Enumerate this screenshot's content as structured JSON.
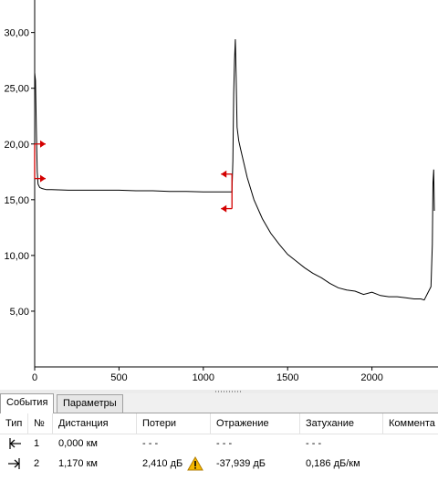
{
  "chart_data": {
    "type": "line",
    "title": "",
    "xlabel": "",
    "ylabel": "",
    "xlim": [
      0,
      2370
    ],
    "ylim": [
      0,
      33
    ],
    "x_ticks": [
      0,
      500,
      1000,
      1500,
      2000
    ],
    "y_ticks": [
      {
        "value": 5,
        "label": "5,00"
      },
      {
        "value": 10,
        "label": "10,00"
      },
      {
        "value": 15,
        "label": "15,00"
      },
      {
        "value": 20,
        "label": "20,00"
      },
      {
        "value": 25,
        "label": "25,00"
      },
      {
        "value": 30,
        "label": "30,00"
      }
    ],
    "grid": false,
    "series": [
      {
        "x": [
          0,
          5,
          10,
          15,
          20,
          30,
          45,
          70,
          100,
          200,
          300,
          400,
          500,
          600,
          700,
          800,
          900,
          1000,
          1100,
          1170,
          1175,
          1180,
          1185,
          1190,
          1195,
          1200,
          1210,
          1220,
          1240,
          1260,
          1300,
          1350,
          1400,
          1450,
          1500,
          1550,
          1600,
          1650,
          1700,
          1750,
          1800,
          1850,
          1900,
          1950,
          2000,
          2050,
          2100,
          2150,
          2200,
          2250,
          2290,
          2310,
          2330,
          2350,
          2358,
          2362,
          2366,
          2370
        ],
        "y": [
          26.4,
          25.7,
          21.5,
          17.5,
          16.4,
          16.1,
          16.0,
          15.9,
          15.9,
          15.85,
          15.85,
          15.85,
          15.85,
          15.8,
          15.8,
          15.75,
          15.75,
          15.7,
          15.7,
          15.7,
          18.5,
          24.5,
          27.5,
          29.4,
          26.0,
          21.5,
          20.3,
          19.6,
          18.3,
          17.0,
          15.0,
          13.3,
          12.0,
          11.0,
          10.1,
          9.5,
          8.9,
          8.4,
          8.0,
          7.5,
          7.1,
          6.9,
          6.8,
          6.5,
          6.7,
          6.4,
          6.3,
          6.3,
          6.2,
          6.1,
          6.1,
          6.0,
          6.6,
          7.2,
          11.0,
          16.5,
          17.7,
          14.0
        ]
      }
    ],
    "markers": [
      {
        "x": 0,
        "y_top": 20.0,
        "y_bottom": 16.9,
        "direction": "right"
      },
      {
        "x": 1170,
        "y_top": 17.3,
        "y_bottom": 14.2,
        "direction": "left"
      }
    ]
  },
  "tabs": [
    {
      "label": "События",
      "active": true
    },
    {
      "label": "Параметры",
      "active": false
    }
  ],
  "events_table": {
    "columns": [
      "Тип",
      "№",
      "Дистанция",
      "Потери",
      "Отражение",
      "Затухание",
      "Коммента"
    ],
    "rows": [
      {
        "type_icon": "launch-start-icon",
        "num": "1",
        "distance": "0,000 км",
        "loss": "- - -",
        "warning": false,
        "reflection": "- - -",
        "attenuation": "- - -",
        "comment": ""
      },
      {
        "type_icon": "reflective-end-icon",
        "num": "2",
        "distance": "1,170 км",
        "loss": "2,410 дБ",
        "warning": true,
        "reflection": "-37,939 дБ",
        "attenuation": "0,186 дБ/км",
        "comment": ""
      }
    ]
  }
}
